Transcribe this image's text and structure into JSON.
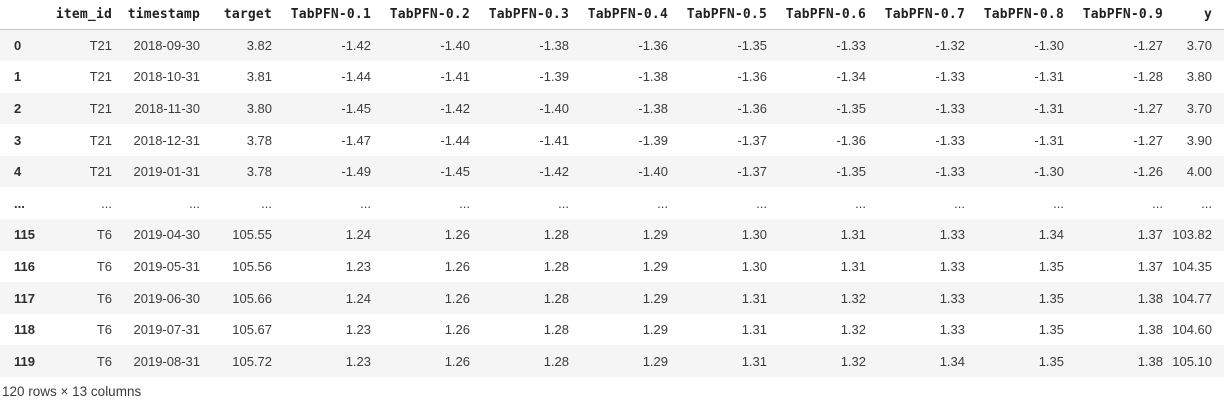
{
  "table": {
    "index_header": "",
    "columns": [
      "item_id",
      "timestamp",
      "target",
      "TabPFN-0.1",
      "TabPFN-0.2",
      "TabPFN-0.3",
      "TabPFN-0.4",
      "TabPFN-0.5",
      "TabPFN-0.6",
      "TabPFN-0.7",
      "TabPFN-0.8",
      "TabPFN-0.9",
      "y"
    ],
    "rows": [
      {
        "index": "0",
        "cells": [
          "T21",
          "2018-09-30",
          "3.82",
          "-1.42",
          "-1.40",
          "-1.38",
          "-1.36",
          "-1.35",
          "-1.33",
          "-1.32",
          "-1.30",
          "-1.27",
          "3.70"
        ]
      },
      {
        "index": "1",
        "cells": [
          "T21",
          "2018-10-31",
          "3.81",
          "-1.44",
          "-1.41",
          "-1.39",
          "-1.38",
          "-1.36",
          "-1.34",
          "-1.33",
          "-1.31",
          "-1.28",
          "3.80"
        ]
      },
      {
        "index": "2",
        "cells": [
          "T21",
          "2018-11-30",
          "3.80",
          "-1.45",
          "-1.42",
          "-1.40",
          "-1.38",
          "-1.36",
          "-1.35",
          "-1.33",
          "-1.31",
          "-1.27",
          "3.70"
        ]
      },
      {
        "index": "3",
        "cells": [
          "T21",
          "2018-12-31",
          "3.78",
          "-1.47",
          "-1.44",
          "-1.41",
          "-1.39",
          "-1.37",
          "-1.36",
          "-1.33",
          "-1.31",
          "-1.27",
          "3.90"
        ]
      },
      {
        "index": "4",
        "cells": [
          "T21",
          "2019-01-31",
          "3.78",
          "-1.49",
          "-1.45",
          "-1.42",
          "-1.40",
          "-1.37",
          "-1.35",
          "-1.33",
          "-1.30",
          "-1.26",
          "4.00"
        ]
      },
      {
        "index": "...",
        "cells": [
          "...",
          "...",
          "...",
          "...",
          "...",
          "...",
          "...",
          "...",
          "...",
          "...",
          "...",
          "...",
          "..."
        ]
      },
      {
        "index": "115",
        "cells": [
          "T6",
          "2019-04-30",
          "105.55",
          "1.24",
          "1.26",
          "1.28",
          "1.29",
          "1.30",
          "1.31",
          "1.33",
          "1.34",
          "1.37",
          "103.82"
        ]
      },
      {
        "index": "116",
        "cells": [
          "T6",
          "2019-05-31",
          "105.56",
          "1.23",
          "1.26",
          "1.28",
          "1.29",
          "1.30",
          "1.31",
          "1.33",
          "1.35",
          "1.37",
          "104.35"
        ]
      },
      {
        "index": "117",
        "cells": [
          "T6",
          "2019-06-30",
          "105.66",
          "1.24",
          "1.26",
          "1.28",
          "1.29",
          "1.31",
          "1.32",
          "1.33",
          "1.35",
          "1.38",
          "104.77"
        ]
      },
      {
        "index": "118",
        "cells": [
          "T6",
          "2019-07-31",
          "105.67",
          "1.23",
          "1.26",
          "1.28",
          "1.29",
          "1.31",
          "1.32",
          "1.33",
          "1.35",
          "1.38",
          "104.60"
        ]
      },
      {
        "index": "119",
        "cells": [
          "T6",
          "2019-08-31",
          "105.72",
          "1.23",
          "1.26",
          "1.28",
          "1.29",
          "1.31",
          "1.32",
          "1.34",
          "1.35",
          "1.38",
          "105.10"
        ]
      }
    ],
    "footer": "120 rows × 13 columns"
  },
  "colors": {
    "stripe": "#f5f5f5",
    "header_border": "#c9c9c9",
    "header_text": "#202122",
    "body_text": "#3a3c3e"
  }
}
